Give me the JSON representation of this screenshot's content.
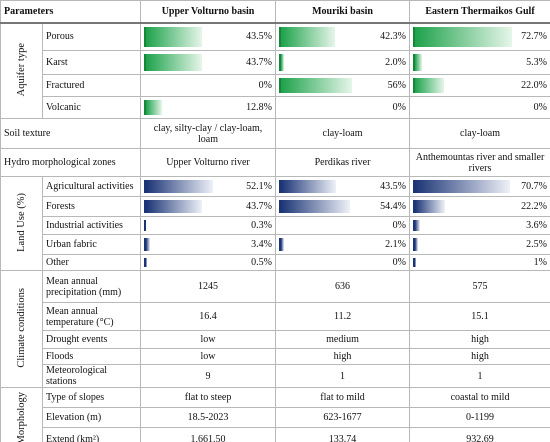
{
  "header": [
    "Parameters",
    "Upper Volturno basin",
    "Mouriki basin",
    "Eastern Thermaikos Gulf"
  ],
  "sections": [
    {
      "group": "Aquifer type",
      "bar": "green",
      "rows": [
        {
          "name": "Porous",
          "cells": [
            {
              "value": 43.5,
              "label": "43.5%"
            },
            {
              "value": 42.3,
              "label": "42.3%"
            },
            {
              "value": 72.7,
              "label": "72.7%"
            }
          ]
        },
        {
          "name": "Karst",
          "cells": [
            {
              "value": 43.7,
              "label": "43.7%"
            },
            {
              "value": 2.0,
              "label": "2.0%"
            },
            {
              "value": 5.3,
              "label": "5.3%"
            }
          ]
        },
        {
          "name": "Fractured",
          "cells": [
            {
              "value": 0,
              "label": "0%"
            },
            {
              "value": 56,
              "label": "56%"
            },
            {
              "value": 22.0,
              "label": "22.0%"
            }
          ]
        },
        {
          "name": "Volcanic",
          "cells": [
            {
              "value": 12.8,
              "label": "12.8%"
            },
            {
              "value": 0,
              "label": "0%"
            },
            {
              "value": 0,
              "label": "0%"
            }
          ]
        }
      ]
    },
    {
      "rows": [
        {
          "name": "Soil texture",
          "cells": [
            "clay, silty-clay / clay-loam, loam",
            "clay-loam",
            "clay-loam"
          ]
        }
      ]
    },
    {
      "rows": [
        {
          "name": "Hydro morphological zones",
          "cells": [
            "Upper Volturno river",
            "Perdikas river",
            "Anthemountas river and smaller rivers"
          ]
        }
      ]
    },
    {
      "group": "Land Use (%)",
      "bar": "blue",
      "rows": [
        {
          "name": "Agricultural activities",
          "cells": [
            {
              "value": 52.1,
              "label": "52.1%"
            },
            {
              "value": 43.5,
              "label": "43.5%"
            },
            {
              "value": 70.7,
              "label": "70.7%"
            }
          ]
        },
        {
          "name": "Forests",
          "cells": [
            {
              "value": 43.7,
              "label": "43.7%"
            },
            {
              "value": 54.4,
              "label": "54.4%"
            },
            {
              "value": 22.2,
              "label": "22.2%"
            }
          ]
        },
        {
          "name": "Industrial activities",
          "cells": [
            {
              "value": 0.3,
              "label": "0.3%"
            },
            {
              "value": 0,
              "label": "0%"
            },
            {
              "value": 3.6,
              "label": "3.6%"
            }
          ]
        },
        {
          "name": "Urban fabric",
          "cells": [
            {
              "value": 3.4,
              "label": "3.4%"
            },
            {
              "value": 2.1,
              "label": "2.1%"
            },
            {
              "value": 2.5,
              "label": "2.5%"
            }
          ]
        },
        {
          "name": "Other",
          "cells": [
            {
              "value": 0.5,
              "label": "0.5%"
            },
            {
              "value": 0,
              "label": "0%"
            },
            {
              "value": 1,
              "label": "1%"
            }
          ]
        }
      ]
    },
    {
      "group": "Climate conditions",
      "rows": [
        {
          "name": "Mean annual precipitation (mm)",
          "cells": [
            "1245",
            "636",
            "575"
          ]
        },
        {
          "name": "Mean annual temperature (°C)",
          "cells": [
            "16.4",
            "11.2",
            "15.1"
          ]
        },
        {
          "name": "Drought events",
          "cells": [
            "low",
            "medium",
            "high"
          ]
        },
        {
          "name": "Floods",
          "cells": [
            "low",
            "high",
            "high"
          ]
        },
        {
          "name": "Meteorological stations",
          "cells": [
            "9",
            "1",
            "1"
          ]
        }
      ]
    },
    {
      "group": "Morphology",
      "rows": [
        {
          "name": "Type of slopes",
          "cells": [
            "flat to steep",
            "flat to mild",
            "coastal to mild"
          ]
        },
        {
          "name": "Elevation (m)",
          "cells": [
            "18.5-2023",
            "623-1677",
            "0-1199"
          ]
        },
        {
          "name": "Extend (km²)",
          "cells": [
            "1,661.50",
            "133.74",
            "932.69"
          ]
        }
      ]
    }
  ]
}
